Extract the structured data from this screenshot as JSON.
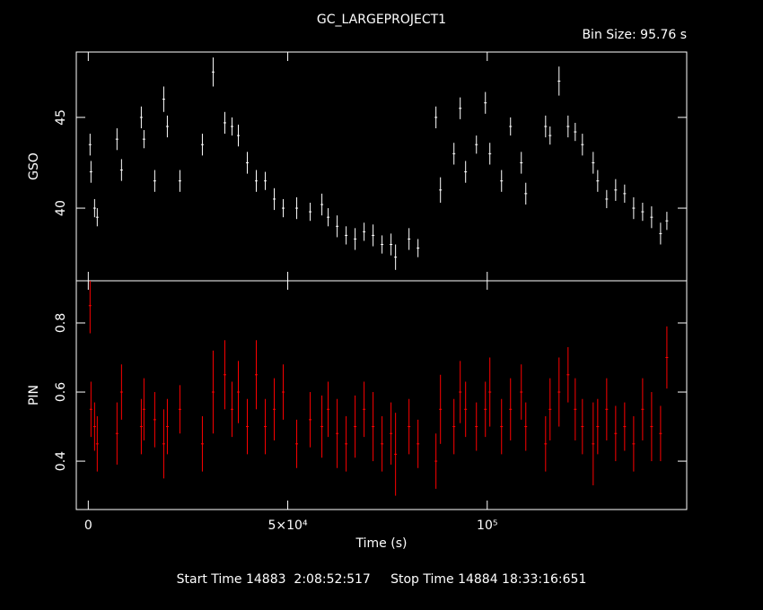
{
  "chart_data": [
    {
      "type": "errorbar",
      "title": "GC_LARGEPROJECT1",
      "annotation": "Bin Size: 95.76 s",
      "ylabel": "GSO",
      "color": "#ffffff",
      "xlim": [
        -3000,
        150000
      ],
      "xticks": [
        0,
        50000,
        100000
      ],
      "ylim": [
        36,
        48.6
      ],
      "yticks": [
        40,
        45
      ],
      "x": [
        450,
        680,
        1580,
        2250,
        7200,
        8330,
        13290,
        13960,
        16660,
        18920,
        19820,
        22970,
        28600,
        31300,
        34230,
        36030,
        37610,
        39860,
        42110,
        44370,
        46620,
        48870,
        52250,
        55630,
        58560,
        60130,
        62390,
        64640,
        66890,
        69140,
        71390,
        73640,
        75890,
        77020,
        80400,
        82650,
        87150,
        88280,
        91660,
        93230,
        94580,
        97290,
        99540,
        100660,
        103590,
        105840,
        108540,
        109670,
        114630,
        115750,
        118000,
        120260,
        122060,
        123860,
        126560,
        127690,
        129940,
        132190,
        134440,
        136700,
        138950,
        141200,
        143450,
        145030
      ],
      "values": [
        43.5,
        42,
        40,
        39.5,
        43.8,
        42.1,
        45,
        43.8,
        41.5,
        46,
        44.5,
        41.5,
        43.5,
        47.5,
        44.7,
        44.5,
        44,
        42.5,
        41.5,
        41.5,
        40.5,
        40,
        40,
        39.8,
        40.2,
        39.5,
        39,
        38.5,
        38.3,
        38.7,
        38.5,
        38,
        38,
        37.3,
        38.3,
        37.8,
        45,
        41,
        43,
        45.5,
        42,
        43.5,
        45.8,
        43,
        41.5,
        44.5,
        42.5,
        40.8,
        44.5,
        44,
        47,
        44.5,
        44.2,
        43.5,
        42.5,
        41.5,
        40.5,
        41,
        40.8,
        40,
        39.8,
        39.5,
        38.6,
        39.3
      ],
      "errors": [
        0.6,
        0.6,
        0.5,
        0.5,
        0.6,
        0.6,
        0.6,
        0.5,
        0.6,
        0.7,
        0.6,
        0.6,
        0.6,
        0.8,
        0.6,
        0.5,
        0.6,
        0.6,
        0.6,
        0.5,
        0.6,
        0.5,
        0.6,
        0.5,
        0.6,
        0.5,
        0.6,
        0.5,
        0.6,
        0.5,
        0.6,
        0.5,
        0.6,
        0.7,
        0.6,
        0.5,
        0.6,
        0.7,
        0.6,
        0.6,
        0.6,
        0.5,
        0.6,
        0.6,
        0.6,
        0.5,
        0.6,
        0.6,
        0.6,
        0.5,
        0.8,
        0.6,
        0.5,
        0.6,
        0.6,
        0.6,
        0.5,
        0.6,
        0.5,
        0.6,
        0.5,
        0.6,
        0.6,
        0.5
      ]
    },
    {
      "type": "errorbar",
      "xlabel": "Time (s)",
      "ylabel": "PIN",
      "color": "#ff0000",
      "xlim": [
        -3000,
        150000
      ],
      "xticks": [
        0,
        {
          "value": 50000,
          "label": "5×10⁴"
        },
        {
          "value": 100000,
          "label": "10⁵"
        }
      ],
      "ylim": [
        0.26,
        0.922
      ],
      "yticks": [
        0.4,
        0.6,
        0.8
      ],
      "x": [
        450,
        680,
        1580,
        2250,
        7200,
        8330,
        13290,
        13960,
        16660,
        18920,
        19820,
        22970,
        28600,
        31300,
        34230,
        36030,
        37610,
        39860,
        42110,
        44370,
        46620,
        48870,
        52250,
        55630,
        58560,
        60130,
        62390,
        64640,
        66890,
        69140,
        71390,
        73640,
        75890,
        77020,
        80400,
        82650,
        87150,
        88280,
        91660,
        93230,
        94580,
        97290,
        99540,
        100660,
        103590,
        105840,
        108540,
        109670,
        114630,
        115750,
        118000,
        120260,
        122060,
        123860,
        126560,
        127690,
        129940,
        132190,
        134440,
        136700,
        138950,
        141200,
        143450,
        145030
      ],
      "values": [
        0.85,
        0.55,
        0.5,
        0.45,
        0.48,
        0.6,
        0.5,
        0.55,
        0.52,
        0.45,
        0.5,
        0.55,
        0.45,
        0.6,
        0.65,
        0.55,
        0.6,
        0.5,
        0.65,
        0.5,
        0.55,
        0.6,
        0.45,
        0.52,
        0.5,
        0.55,
        0.48,
        0.45,
        0.5,
        0.55,
        0.5,
        0.45,
        0.48,
        0.42,
        0.5,
        0.45,
        0.4,
        0.55,
        0.5,
        0.6,
        0.55,
        0.5,
        0.55,
        0.6,
        0.5,
        0.55,
        0.6,
        0.5,
        0.45,
        0.55,
        0.6,
        0.65,
        0.55,
        0.5,
        0.45,
        0.5,
        0.55,
        0.48,
        0.5,
        0.45,
        0.55,
        0.5,
        0.48,
        0.7
      ],
      "errors": [
        0.08,
        0.08,
        0.07,
        0.08,
        0.09,
        0.08,
        0.08,
        0.09,
        0.08,
        0.1,
        0.08,
        0.07,
        0.08,
        0.12,
        0.1,
        0.08,
        0.09,
        0.08,
        0.1,
        0.08,
        0.09,
        0.08,
        0.07,
        0.08,
        0.09,
        0.08,
        0.1,
        0.08,
        0.09,
        0.08,
        0.1,
        0.08,
        0.09,
        0.12,
        0.08,
        0.07,
        0.08,
        0.1,
        0.08,
        0.09,
        0.08,
        0.07,
        0.08,
        0.1,
        0.08,
        0.09,
        0.08,
        0.07,
        0.08,
        0.09,
        0.1,
        0.08,
        0.09,
        0.08,
        0.12,
        0.08,
        0.09,
        0.08,
        0.07,
        0.08,
        0.09,
        0.1,
        0.08,
        0.09
      ]
    }
  ],
  "footer": "Start Time 14883  2:08:52:517     Stop Time 14884 18:33:16:651"
}
